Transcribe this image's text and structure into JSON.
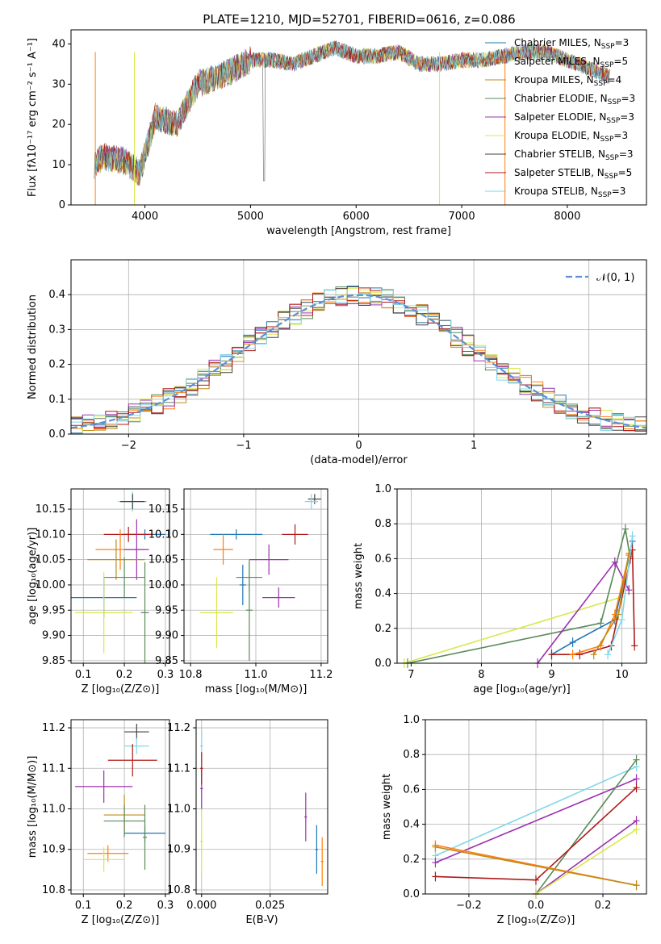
{
  "title": "PLATE=1210, MJD=52701, FIBERID=0616, z=0.086",
  "colors": {
    "Chabrier MILES": "#1f77b4",
    "Salpeter MILES": "#ff7f0e",
    "Kroupa MILES": "#c08a1c",
    "Chabrier ELODIE": "#5a8a5a",
    "Salpeter ELODIE": "#9b30b0",
    "Kroupa ELODIE": "#d8e84a",
    "Chabrier STELIB": "#444444",
    "Salpeter STELIB": "#b01818",
    "Kroupa STELIB": "#7fd8e8",
    "normal_curve": "#5b8fd6"
  },
  "chart_data": [
    {
      "type": "line",
      "panel": "spectrum",
      "xlabel": "wavelength [Angstrom, rest frame]",
      "ylabel": "Flux [fλ10⁻¹⁷ erg cm⁻² s⁻¹ A⁻¹]",
      "xlim": [
        3300,
        8750
      ],
      "ylim": [
        0,
        43.5
      ],
      "xticks": [
        4000,
        5000,
        6000,
        7000,
        8000
      ],
      "yticks": [
        0,
        10,
        20,
        30,
        40
      ],
      "legend": [
        "Chabrier MILES, N_SSP=3",
        "Salpeter MILES, N_SSP=5",
        "Kroupa MILES, N_SSP=4",
        "Chabrier ELODIE, N_SSP=3",
        "Salpeter ELODIE, N_SSP=3",
        "Kroupa ELODIE, N_SSP=3",
        "Chabrier STELIB, N_SSP=3",
        "Salpeter STELIB, N_SSP=5",
        "Kroupa STELIB, N_SSP=3"
      ],
      "legend_labels": [
        {
          "name": "Chabrier MILES, N",
          "sub": "SSP",
          "val": "=3"
        },
        {
          "name": "Salpeter MILES, N",
          "sub": "SSP",
          "val": "=5"
        },
        {
          "name": "Kroupa MILES, N",
          "sub": "SSP",
          "val": "=4"
        },
        {
          "name": "Chabrier ELODIE, N",
          "sub": "SSP",
          "val": "=3"
        },
        {
          "name": "Salpeter ELODIE, N",
          "sub": "SSP",
          "val": "=3"
        },
        {
          "name": "Kroupa ELODIE, N",
          "sub": "SSP",
          "val": "=3"
        },
        {
          "name": "Chabrier STELIB, N",
          "sub": "SSP",
          "val": "=3"
        },
        {
          "name": "Salpeter STELIB, N",
          "sub": "SSP",
          "val": "=5"
        },
        {
          "name": "Kroupa STELIB, N",
          "sub": "SSP",
          "val": "=3"
        }
      ],
      "legend_placement": "upper-right",
      "spectrum_anchor": {
        "x": [
          3520,
          3600,
          3800,
          3950,
          4100,
          4300,
          4500,
          4800,
          5000,
          5200,
          5400,
          5600,
          5800,
          6000,
          6200,
          6400,
          6600,
          6800,
          7000,
          7200,
          7400,
          7600,
          7800,
          8000,
          8200,
          8400
        ],
        "y": [
          10,
          12,
          11,
          8,
          22,
          20,
          30,
          33,
          36,
          36,
          35,
          37,
          39,
          37,
          37,
          38,
          35,
          35,
          36,
          36,
          37,
          38,
          38,
          36,
          34,
          32
        ]
      }
    },
    {
      "type": "histogram",
      "panel": "residuals",
      "xlabel": "(data-model)/error",
      "ylabel": "Normed distribution",
      "xlim": [
        -2.5,
        2.5
      ],
      "ylim": [
        0,
        0.5
      ],
      "xticks": [
        -2,
        -1,
        0,
        1,
        2
      ],
      "yticks": [
        0.0,
        0.1,
        0.2,
        0.3,
        0.4
      ],
      "legend": "𝒩(0, 1)",
      "legend_placement": "upper-right",
      "grid": true
    },
    {
      "type": "scatter",
      "panel": "age-vs-Z",
      "xlabel": "Z [log₁₀(Z/Z⊙)]",
      "ylabel": "age  [log₁₀(age/yr)]",
      "xlim": [
        0.07,
        0.31
      ],
      "ylim": [
        9.845,
        10.19
      ],
      "xticks": [
        0.1,
        0.2,
        0.3
      ],
      "yticks": [
        9.85,
        9.9,
        9.95,
        10.0,
        10.05,
        10.1,
        10.15
      ],
      "points": [
        {
          "series": "Kroupa STELIB",
          "x": 0.22,
          "y": 10.165,
          "xerr": 0.035,
          "yerr": 0.02
        },
        {
          "series": "Chabrier STELIB",
          "x": 0.22,
          "y": 10.165,
          "xerr": 0.03,
          "yerr": 0.015
        },
        {
          "series": "Chabrier MILES",
          "x": 0.25,
          "y": 10.1,
          "xerr": 0.05,
          "yerr": 0.01
        },
        {
          "series": "Salpeter STELIB",
          "x": 0.21,
          "y": 10.1,
          "xerr": 0.06,
          "yerr": 0.015
        },
        {
          "series": "Salpeter MILES",
          "x": 0.19,
          "y": 10.07,
          "xerr": 0.06,
          "yerr": 0.04
        },
        {
          "series": "Salpeter ELODIE",
          "x": 0.23,
          "y": 10.07,
          "xerr": 0.03,
          "yerr": 0.06
        },
        {
          "series": "Kroupa MILES",
          "x": 0.18,
          "y": 10.05,
          "xerr": 0.07,
          "yerr": 0.04
        },
        {
          "series": "Chabrier ELODIE",
          "x": 0.2,
          "y": 10.015,
          "xerr": 0.05,
          "yerr": 0.04
        },
        {
          "series": "Chabrier MILES",
          "x": 0.15,
          "y": 9.975,
          "xerr": 0.08,
          "yerr": 0.04
        },
        {
          "series": "Kroupa ELODIE",
          "x": 0.15,
          "y": 9.945,
          "xerr": 0.07,
          "yerr": 0.08
        },
        {
          "series": "Chabrier ELODIE",
          "x": 0.25,
          "y": 9.945,
          "xerr": 0.01,
          "yerr": 0.1
        }
      ]
    },
    {
      "type": "scatter",
      "panel": "age-vs-mass",
      "xlabel": "mass [log₁₀(M/M⊙)]",
      "ylabel": "",
      "xlim": [
        10.78,
        11.22
      ],
      "ylim": [
        9.845,
        10.19
      ],
      "xticks": [
        10.8,
        11.0,
        11.2
      ],
      "yticks": [
        9.85,
        9.9,
        9.95,
        10.0,
        10.05,
        10.1,
        10.15
      ],
      "points": [
        {
          "series": "Chabrier STELIB",
          "x": 11.18,
          "y": 10.17,
          "xerr": 0.02,
          "yerr": 0.01
        },
        {
          "series": "Kroupa STELIB",
          "x": 11.17,
          "y": 10.165,
          "xerr": 0.02,
          "yerr": 0.015
        },
        {
          "series": "Chabrier MILES",
          "x": 10.94,
          "y": 10.1,
          "xerr": 0.08,
          "yerr": 0.01
        },
        {
          "series": "Salpeter STELIB",
          "x": 11.12,
          "y": 10.1,
          "xerr": 0.04,
          "yerr": 0.02
        },
        {
          "series": "Salpeter MILES",
          "x": 10.9,
          "y": 10.07,
          "xerr": 0.03,
          "yerr": 0.03
        },
        {
          "series": "Salpeter ELODIE",
          "x": 11.04,
          "y": 10.05,
          "xerr": 0.06,
          "yerr": 0.03
        },
        {
          "series": "Chabrier ELODIE",
          "x": 10.98,
          "y": 10.015,
          "xerr": 0.04,
          "yerr": 0.03
        },
        {
          "series": "Chabrier MILES",
          "x": 10.96,
          "y": 10.0,
          "xerr": 0.01,
          "yerr": 0.04
        },
        {
          "series": "Salpeter ELODIE",
          "x": 11.07,
          "y": 9.975,
          "xerr": 0.05,
          "yerr": 0.02
        },
        {
          "series": "Kroupa ELODIE",
          "x": 10.88,
          "y": 9.945,
          "xerr": 0.05,
          "yerr": 0.07
        },
        {
          "series": "Chabrier ELODIE",
          "x": 10.98,
          "y": 9.95,
          "xerr": 0.01,
          "yerr": 0.1
        }
      ]
    },
    {
      "type": "line",
      "panel": "mass-weight-vs-age",
      "xlabel": "age  [log₁₀(age/yr)]",
      "ylabel": "mass weight",
      "xlim": [
        6.8,
        10.35
      ],
      "ylim": [
        0,
        1.0
      ],
      "xticks": [
        7,
        8,
        9,
        10
      ],
      "yticks": [
        0.0,
        0.2,
        0.4,
        0.6,
        0.8,
        1.0
      ],
      "series": [
        {
          "name": "Kroupa ELODIE",
          "x": [
            6.9,
            10.0,
            10.1
          ],
          "y": [
            0.0,
            0.38,
            0.63
          ]
        },
        {
          "name": "Chabrier ELODIE",
          "x": [
            6.95,
            9.7,
            10.05,
            10.12
          ],
          "y": [
            0.0,
            0.23,
            0.77,
            0.6
          ]
        },
        {
          "name": "Salpeter ELODIE",
          "x": [
            8.8,
            9.9,
            10.1
          ],
          "y": [
            0.0,
            0.58,
            0.42
          ]
        },
        {
          "name": "Chabrier MILES",
          "x": [
            9.0,
            9.3,
            9.9,
            10.15
          ],
          "y": [
            0.05,
            0.12,
            0.25,
            0.7
          ]
        },
        {
          "name": "Salpeter STELIB",
          "x": [
            9.0,
            9.4,
            9.85,
            10.15,
            10.18
          ],
          "y": [
            0.05,
            0.05,
            0.1,
            0.65,
            0.1
          ]
        },
        {
          "name": "Salpeter MILES",
          "x": [
            9.3,
            9.7,
            9.9,
            10.1
          ],
          "y": [
            0.05,
            0.1,
            0.28,
            0.62
          ]
        },
        {
          "name": "Kroupa STELIB",
          "x": [
            9.8,
            10.0,
            10.15
          ],
          "y": [
            0.05,
            0.25,
            0.73
          ]
        },
        {
          "name": "Kroupa MILES",
          "x": [
            9.6,
            9.95,
            10.1
          ],
          "y": [
            0.05,
            0.28,
            0.63
          ]
        }
      ],
      "grid": true
    },
    {
      "type": "scatter",
      "panel": "mass-vs-Z",
      "xlabel": "Z [log₁₀(Z/Z⊙)]",
      "ylabel": "mass [log₁₀(M/M⊙)]",
      "xlim": [
        0.07,
        0.31
      ],
      "ylim": [
        10.79,
        11.22
      ],
      "xticks": [
        0.1,
        0.2,
        0.3
      ],
      "yticks": [
        10.8,
        10.9,
        11.0,
        11.1,
        11.2
      ],
      "points": [
        {
          "series": "Chabrier STELIB",
          "x": 0.23,
          "y": 11.19,
          "xerr": 0.03,
          "yerr": 0.02
        },
        {
          "series": "Kroupa STELIB",
          "x": 0.23,
          "y": 11.155,
          "xerr": 0.03,
          "yerr": 0.02
        },
        {
          "series": "Salpeter STELIB",
          "x": 0.22,
          "y": 11.12,
          "xerr": 0.06,
          "yerr": 0.04
        },
        {
          "series": "Salpeter ELODIE",
          "x": 0.15,
          "y": 11.055,
          "xerr": 0.07,
          "yerr": 0.04
        },
        {
          "series": "Kroupa MILES",
          "x": 0.2,
          "y": 10.985,
          "xerr": 0.05,
          "yerr": 0.05
        },
        {
          "series": "Chabrier ELODIE",
          "x": 0.2,
          "y": 10.97,
          "xerr": 0.05,
          "yerr": 0.04
        },
        {
          "series": "Chabrier MILES",
          "x": 0.25,
          "y": 10.94,
          "xerr": 0.05,
          "yerr": 0.02
        },
        {
          "series": "Salpeter MILES",
          "x": 0.16,
          "y": 10.89,
          "xerr": 0.05,
          "yerr": 0.02
        },
        {
          "series": "Kroupa ELODIE",
          "x": 0.15,
          "y": 10.875,
          "xerr": 0.05,
          "yerr": 0.03
        },
        {
          "series": "Chabrier ELODIE",
          "x": 0.25,
          "y": 10.93,
          "xerr": 0.005,
          "yerr": 0.08
        }
      ]
    },
    {
      "type": "scatter",
      "panel": "mass-vs-EBV",
      "xlabel": "E(B-V)",
      "ylabel": "",
      "xlim": [
        -0.002,
        0.046
      ],
      "ylim": [
        10.79,
        11.22
      ],
      "xticks": [
        0.0,
        0.025
      ],
      "yticks": [
        10.8,
        10.9,
        11.0,
        11.1,
        11.2
      ],
      "points": [
        {
          "series": "Kroupa STELIB",
          "x": 0.0,
          "y": 11.155,
          "xerr": 0.0005,
          "yerr": 0.04
        },
        {
          "series": "Salpeter ELODIE",
          "x": 0.0,
          "y": 11.05,
          "xerr": 0.0005,
          "yerr": 0.05
        },
        {
          "series": "Salpeter STELIB",
          "x": 0.0,
          "y": 11.1,
          "xerr": 0.0005,
          "yerr": 0.04
        },
        {
          "series": "Kroupa ELODIE",
          "x": 0.0,
          "y": 10.92,
          "xerr": 0.0005,
          "yerr": 0.08
        },
        {
          "series": "Salpeter ELODIE",
          "x": 0.038,
          "y": 10.98,
          "xerr": 0.0005,
          "yerr": 0.06
        },
        {
          "series": "Chabrier MILES",
          "x": 0.042,
          "y": 10.9,
          "xerr": 0.0005,
          "yerr": 0.06
        },
        {
          "series": "Salpeter MILES",
          "x": 0.044,
          "y": 10.87,
          "xerr": 0.0005,
          "yerr": 0.06
        }
      ]
    },
    {
      "type": "line",
      "panel": "mass-weight-vs-Z",
      "xlabel": "Z [log₁₀(Z/Z⊙)]",
      "ylabel": "mass weight",
      "xlim": [
        -0.33,
        0.33
      ],
      "ylim": [
        0,
        1.0
      ],
      "xticks": [
        -0.2,
        0.0,
        0.2
      ],
      "yticks": [
        0.0,
        0.2,
        0.4,
        0.6,
        0.8,
        1.0
      ],
      "series": [
        {
          "name": "Kroupa STELIB",
          "x": [
            -0.3,
            0.3
          ],
          "y": [
            0.22,
            0.73
          ]
        },
        {
          "name": "Salpeter ELODIE",
          "x": [
            -0.3,
            0.3
          ],
          "y": [
            0.18,
            0.66
          ]
        },
        {
          "name": "Chabrier ELODIE",
          "x": [
            0.0,
            0.3
          ],
          "y": [
            0.0,
            0.77
          ]
        },
        {
          "name": "Salpeter STELIB",
          "x": [
            -0.3,
            0.0,
            0.3
          ],
          "y": [
            0.1,
            0.08,
            0.61
          ]
        },
        {
          "name": "Salpeter ELODIE",
          "x": [
            0.0,
            0.3
          ],
          "y": [
            0.0,
            0.42
          ]
        },
        {
          "name": "Kroupa ELODIE",
          "x": [
            0.0,
            0.3
          ],
          "y": [
            0.0,
            0.37
          ]
        },
        {
          "name": "Salpeter MILES",
          "x": [
            -0.3,
            0.3
          ],
          "y": [
            0.28,
            0.05
          ]
        },
        {
          "name": "Kroupa MILES",
          "x": [
            -0.3,
            0.3
          ],
          "y": [
            0.27,
            0.05
          ]
        }
      ],
      "grid": true
    }
  ]
}
